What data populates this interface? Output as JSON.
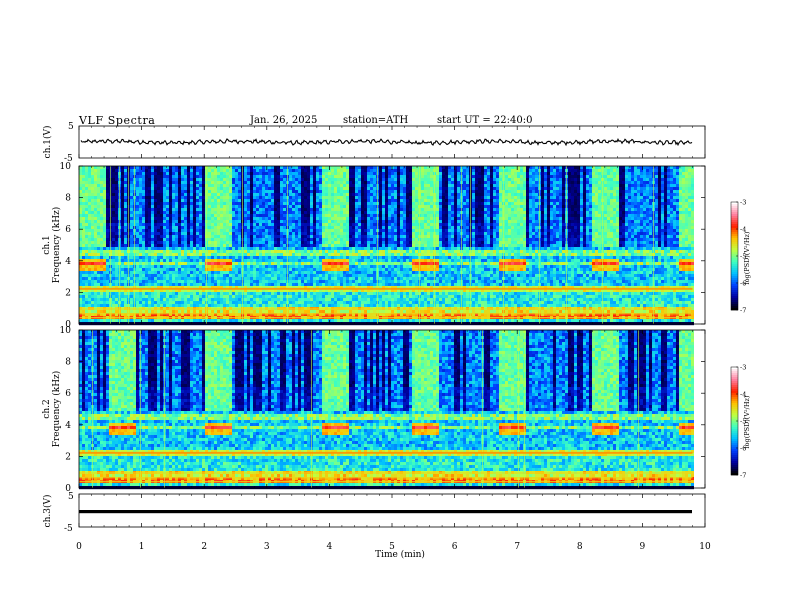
{
  "header": {
    "title": "VLF  Spectra",
    "date": "Jan. 26, 2025",
    "station": "station=ATH",
    "start_ut": "start  UT  =   22:40:0"
  },
  "chart_data": [
    {
      "type": "line",
      "id": "ch1_waveform",
      "ylabel": "ch.1(V)",
      "ylim": [
        -5,
        5
      ],
      "yticks": [
        "5",
        "-5"
      ],
      "xlim": [
        0,
        10
      ],
      "note_level": 0,
      "color": "#000000"
    },
    {
      "type": "heatmap",
      "id": "ch1_spectrogram",
      "ylabel": "ch.1\nFrequency (kHz)",
      "ylabel_line1": "ch.1",
      "ylabel_line2": "Frequency (kHz)",
      "ylim": [
        0,
        10
      ],
      "yticks": [
        "0",
        "2",
        "4",
        "6",
        "8",
        "10"
      ],
      "xlim": [
        0,
        9.8
      ],
      "burst_intervals_min": [
        [
          0.0,
          0.42
        ],
        [
          2.0,
          2.42
        ],
        [
          3.85,
          4.27
        ],
        [
          5.3,
          5.72
        ],
        [
          6.7,
          7.12
        ],
        [
          8.15,
          8.6
        ],
        [
          9.55,
          9.8
        ]
      ],
      "colorbar": {
        "label": "log(PSD)(V²/Hz)",
        "ticks": [
          "-3",
          "-4",
          "-5",
          "-6",
          "-7"
        ],
        "range": [
          -7,
          -3
        ]
      }
    },
    {
      "type": "heatmap",
      "id": "ch2_spectrogram",
      "ylabel": "ch.2\nFrequency (kHz)",
      "ylabel_line1": "ch.2",
      "ylabel_line2": "Frequency (kHz)",
      "ylim": [
        0,
        10
      ],
      "yticks": [
        "0",
        "2",
        "4",
        "6",
        "8",
        "10"
      ],
      "xlim": [
        0,
        9.8
      ],
      "burst_intervals_min": [
        [
          0.45,
          0.9
        ],
        [
          2.0,
          2.42
        ],
        [
          3.85,
          4.27
        ],
        [
          5.3,
          5.72
        ],
        [
          6.7,
          7.12
        ],
        [
          8.15,
          8.6
        ],
        [
          9.55,
          9.8
        ]
      ],
      "colorbar": {
        "label": "log(PSD)(V²/Hz)",
        "ticks": [
          "-3",
          "-4",
          "-5",
          "-6",
          "-7"
        ],
        "range": [
          -7,
          -3
        ]
      }
    },
    {
      "type": "line",
      "id": "ch3_waveform",
      "ylabel": "ch.3(V)",
      "ylim": [
        -5,
        5
      ],
      "yticks": [
        "5",
        "-5"
      ],
      "xlim": [
        0,
        10
      ],
      "note_level": 0,
      "color": "#000000"
    }
  ],
  "xaxis": {
    "label": "Time  (min)",
    "ticks": [
      "0",
      "1",
      "2",
      "3",
      "4",
      "5",
      "6",
      "7",
      "8",
      "9",
      "10"
    ],
    "range": [
      0,
      10
    ]
  },
  "colors": {
    "colormap": [
      "#000000",
      "#0000a0",
      "#0040ff",
      "#00c0ff",
      "#40ffc0",
      "#c0ff40",
      "#ffc000",
      "#ff2000",
      "#ff80a0",
      "#ffffff"
    ]
  }
}
